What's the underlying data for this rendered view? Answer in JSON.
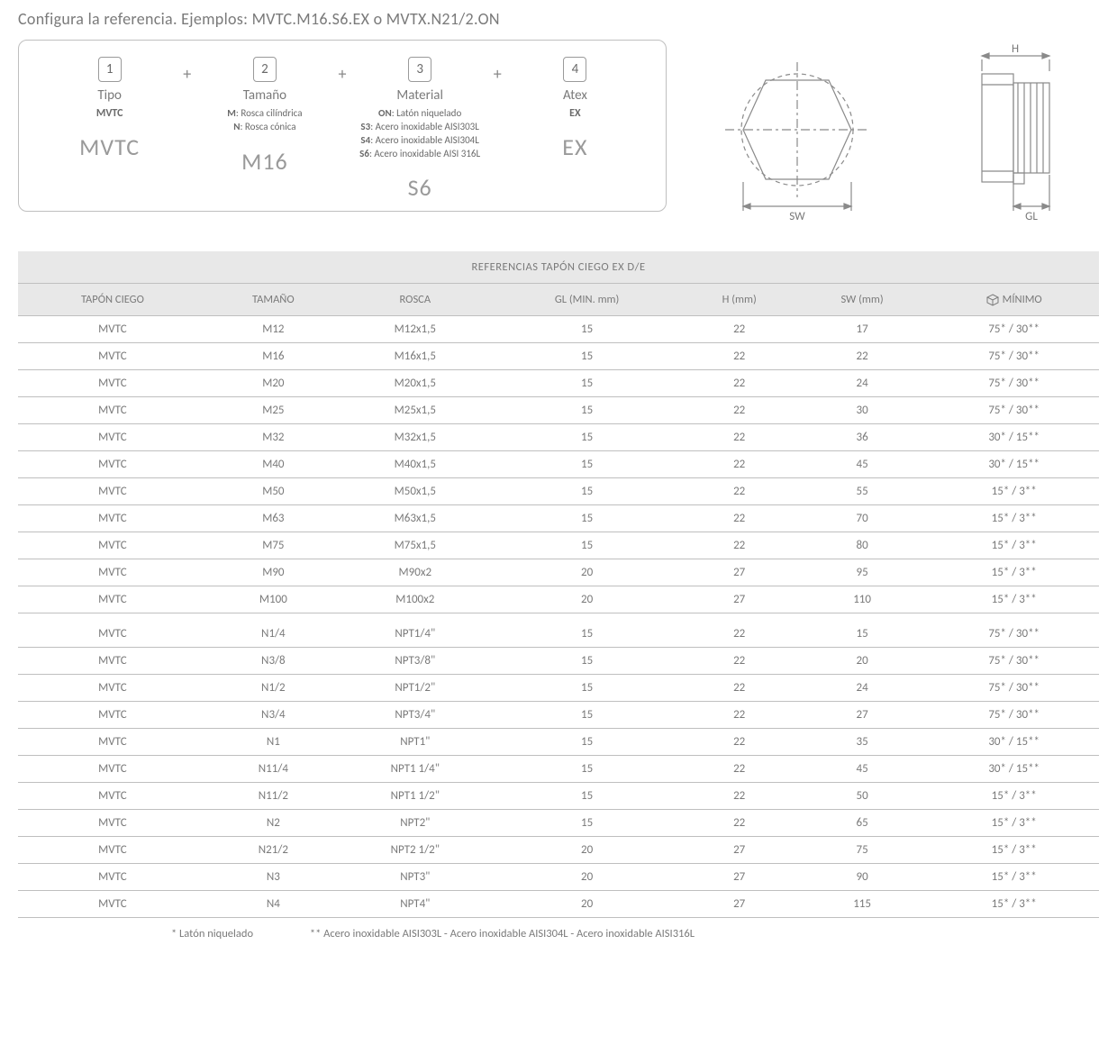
{
  "header": "Configura la referencia. Ejemplos: MVTC.M16.S6.EX o MVTX.N21/2.ON",
  "config": {
    "cols": [
      {
        "num": "1",
        "title": "Tipo",
        "bold": "MVTC",
        "desc_html": "",
        "example": "MVTC"
      },
      {
        "num": "2",
        "title": "Tamaño",
        "bold": "",
        "desc_html": "<b>M</b>: Rosca cilíndrica<br><b>N</b>: Rosca cónica",
        "example": "M16"
      },
      {
        "num": "3",
        "title": "Material",
        "bold": "",
        "desc_html": "<b>ON</b>: Latón niquelado<br><b>S3</b>: Acero inoxidable AISI303L<br><b>S4</b>: Acero inoxidable AISI304L<br><b>S6</b>: Acero inoxidable AISI 316L",
        "example": "S6"
      },
      {
        "num": "4",
        "title": "Atex",
        "bold": "EX",
        "desc_html": "",
        "example": "EX"
      }
    ]
  },
  "diagram": {
    "hex_stroke": "#8a8a8a",
    "dash": "4,4",
    "sw_label": "SW",
    "h_label": "H",
    "gl_label": "GL"
  },
  "table": {
    "title": "REFERENCIAS TAPÓN CIEGO EX D/E",
    "columns": [
      "TAPÓN CIEGO",
      "TAMAÑO",
      "ROSCA",
      "GL (MIN. mm)",
      "H (mm)",
      "SW (mm)",
      "MÍNIMO"
    ],
    "group1": [
      [
        "MVTC",
        "M12",
        "M12x1,5",
        "15",
        "22",
        "17",
        "75* / 30**"
      ],
      [
        "MVTC",
        "M16",
        "M16x1,5",
        "15",
        "22",
        "22",
        "75* / 30**"
      ],
      [
        "MVTC",
        "M20",
        "M20x1,5",
        "15",
        "22",
        "24",
        "75* / 30**"
      ],
      [
        "MVTC",
        "M25",
        "M25x1,5",
        "15",
        "22",
        "30",
        "75* / 30**"
      ],
      [
        "MVTC",
        "M32",
        "M32x1,5",
        "15",
        "22",
        "36",
        "30* / 15**"
      ],
      [
        "MVTC",
        "M40",
        "M40x1,5",
        "15",
        "22",
        "45",
        "30* / 15**"
      ],
      [
        "MVTC",
        "M50",
        "M50x1,5",
        "15",
        "22",
        "55",
        "15* / 3**"
      ],
      [
        "MVTC",
        "M63",
        "M63x1,5",
        "15",
        "22",
        "70",
        "15* / 3**"
      ],
      [
        "MVTC",
        "M75",
        "M75x1,5",
        "15",
        "22",
        "80",
        "15* / 3**"
      ],
      [
        "MVTC",
        "M90",
        "M90x2",
        "20",
        "27",
        "95",
        "15* / 3**"
      ],
      [
        "MVTC",
        "M100",
        "M100x2",
        "20",
        "27",
        "110",
        "15* / 3**"
      ]
    ],
    "group2": [
      [
        "MVTC",
        "N1/4",
        "NPT1/4\"",
        "15",
        "22",
        "15",
        "75* / 30**"
      ],
      [
        "MVTC",
        "N3/8",
        "NPT3/8\"",
        "15",
        "22",
        "20",
        "75* / 30**"
      ],
      [
        "MVTC",
        "N1/2",
        "NPT1/2\"",
        "15",
        "22",
        "24",
        "75* / 30**"
      ],
      [
        "MVTC",
        "N3/4",
        "NPT3/4\"",
        "15",
        "22",
        "27",
        "75* / 30**"
      ],
      [
        "MVTC",
        "N1",
        "NPT1\"",
        "15",
        "22",
        "35",
        "30* / 15**"
      ],
      [
        "MVTC",
        "N11/4",
        "NPT1 1/4\"",
        "15",
        "22",
        "45",
        "30* / 15**"
      ],
      [
        "MVTC",
        "N11/2",
        "NPT1 1/2\"",
        "15",
        "22",
        "50",
        "15* / 3**"
      ],
      [
        "MVTC",
        "N2",
        "NPT2\"",
        "15",
        "22",
        "65",
        "15* / 3**"
      ],
      [
        "MVTC",
        "N21/2",
        "NPT2 1/2\"",
        "20",
        "27",
        "75",
        "15* / 3**"
      ],
      [
        "MVTC",
        "N3",
        "NPT3\"",
        "20",
        "27",
        "90",
        "15* / 3**"
      ],
      [
        "MVTC",
        "N4",
        "NPT4\"",
        "20",
        "27",
        "115",
        "15* / 3**"
      ]
    ]
  },
  "footnote": {
    "a": "* Latón niquelado",
    "b": "** Acero inoxidable AISI303L - Acero inoxidable AISI304L - Acero inoxidable AISI316L"
  }
}
